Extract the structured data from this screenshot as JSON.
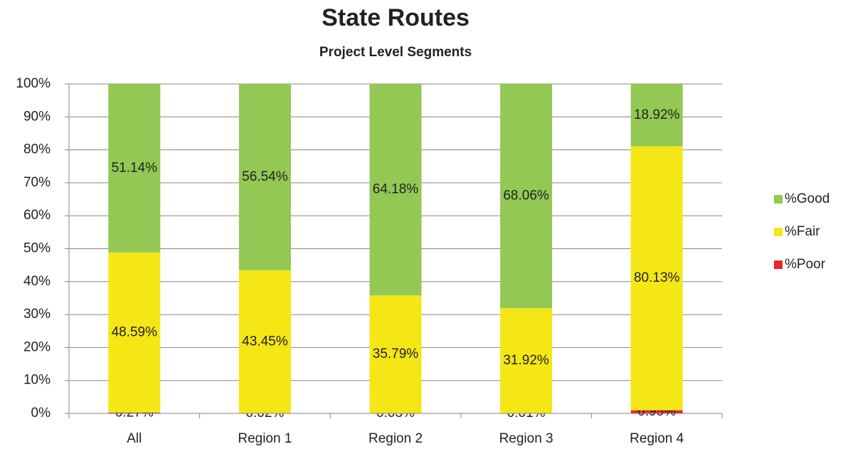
{
  "chart_data": {
    "type": "stacked_bar",
    "title": "State Routes",
    "subtitle": "Project Level Segments",
    "categories": [
      "All",
      "Region 1",
      "Region 2",
      "Region 3",
      "Region 4"
    ],
    "series": [
      {
        "name": "%Poor",
        "color": "#e8262a",
        "values": [
          0.27,
          0.02,
          0.03,
          0.01,
          0.95
        ],
        "value_labels": [
          "0.27%",
          "0.02%",
          "0.03%",
          "0.01%",
          "0.95%"
        ]
      },
      {
        "name": "%Fair",
        "color": "#f5e616",
        "values": [
          48.59,
          43.45,
          35.79,
          31.92,
          80.13
        ],
        "value_labels": [
          "48.59%",
          "43.45%",
          "35.79%",
          "31.92%",
          "80.13%"
        ]
      },
      {
        "name": "%Good",
        "color": "#92c853",
        "values": [
          51.14,
          56.54,
          64.18,
          68.06,
          18.92
        ],
        "value_labels": [
          "51.14%",
          "56.54%",
          "64.18%",
          "68.06%",
          "18.92%"
        ]
      }
    ],
    "ylim": [
      0,
      100
    ],
    "yticks": [
      {
        "value": 0,
        "label": "0%"
      },
      {
        "value": 10,
        "label": "10%"
      },
      {
        "value": 20,
        "label": "20%"
      },
      {
        "value": 30,
        "label": "30%"
      },
      {
        "value": 40,
        "label": "40%"
      },
      {
        "value": 50,
        "label": "50%"
      },
      {
        "value": 60,
        "label": "60%"
      },
      {
        "value": 70,
        "label": "70%"
      },
      {
        "value": 80,
        "label": "80%"
      },
      {
        "value": 90,
        "label": "90%"
      },
      {
        "value": 100,
        "label": "100%"
      }
    ],
    "grid": true,
    "legend": "right"
  }
}
